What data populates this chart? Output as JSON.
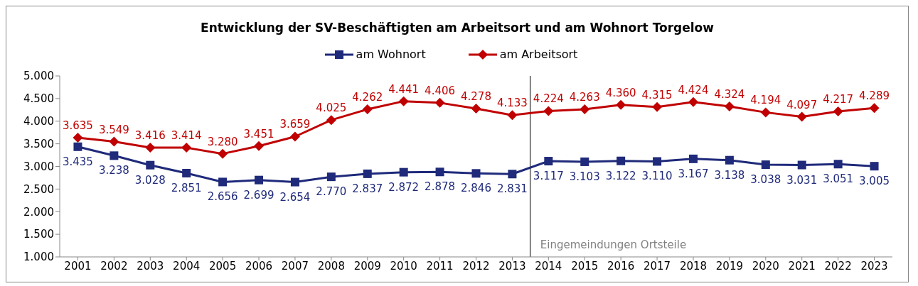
{
  "chart_data": {
    "type": "line",
    "title": "Entwicklung der SV-Beschäftigten am Arbeitsort und am Wohnort Torgelow",
    "x": [
      2001,
      2002,
      2003,
      2004,
      2005,
      2006,
      2007,
      2008,
      2009,
      2010,
      2011,
      2012,
      2013,
      2014,
      2015,
      2016,
      2017,
      2018,
      2019,
      2020,
      2021,
      2022,
      2023
    ],
    "xlim": [
      2000.5,
      2023.5
    ],
    "xticks": [
      2001,
      2002,
      2003,
      2004,
      2005,
      2006,
      2007,
      2008,
      2009,
      2010,
      2011,
      2012,
      2013,
      2014,
      2015,
      2016,
      2017,
      2018,
      2019,
      2020,
      2021,
      2022,
      2023
    ],
    "ylim": [
      1000,
      5000
    ],
    "yticks": [
      {
        "value": 1000,
        "label": "1.000"
      },
      {
        "value": 1500,
        "label": "1.500"
      },
      {
        "value": 2000,
        "label": "2.000"
      },
      {
        "value": 2500,
        "label": "2.500"
      },
      {
        "value": 3000,
        "label": "3.000"
      },
      {
        "value": 3500,
        "label": "3.500"
      },
      {
        "value": 4000,
        "label": "4.000"
      },
      {
        "value": 4500,
        "label": "4.500"
      },
      {
        "value": 5000,
        "label": "5.000"
      }
    ],
    "series": [
      {
        "name": "am Wohnort",
        "color": "#1f2a7a",
        "marker": "square",
        "values": [
          3435,
          3238,
          3028,
          2851,
          2656,
          2699,
          2654,
          2770,
          2837,
          2872,
          2878,
          2846,
          2831,
          3117,
          3103,
          3122,
          3110,
          3167,
          3138,
          3038,
          3031,
          3051,
          3005
        ],
        "value_labels": [
          "3.435",
          "3.238",
          "3.028",
          "2.851",
          "2.656",
          "2.699",
          "2.654",
          "2.770",
          "2.837",
          "2.872",
          "2.878",
          "2.846",
          "2.831",
          "3.117",
          "3.103",
          "3.122",
          "3.110",
          "3.167",
          "3.138",
          "3.038",
          "3.031",
          "3.051",
          "3.005"
        ]
      },
      {
        "name": "am Arbeitsort",
        "color": "#c00000",
        "marker": "diamond",
        "values": [
          3635,
          3549,
          3416,
          3414,
          3280,
          3451,
          3659,
          4025,
          4262,
          4441,
          4406,
          4278,
          4133,
          4224,
          4263,
          4360,
          4315,
          4424,
          4324,
          4194,
          4097,
          4217,
          4289
        ],
        "value_labels": [
          "3.635",
          "3.549",
          "3.416",
          "3.414",
          "3.280",
          "3.451",
          "3.659",
          "4.025",
          "4.262",
          "4.441",
          "4.406",
          "4.278",
          "4.133",
          "4.224",
          "4.263",
          "4.360",
          "4.315",
          "4.424",
          "4.324",
          "4.194",
          "4.097",
          "4.217",
          "4.289"
        ]
      }
    ],
    "ref_lines": [
      {
        "axis": "x",
        "value": 2013.5,
        "label": "Eingemeindungen Ortsteile",
        "color": "#808080"
      }
    ],
    "legend": "top"
  }
}
